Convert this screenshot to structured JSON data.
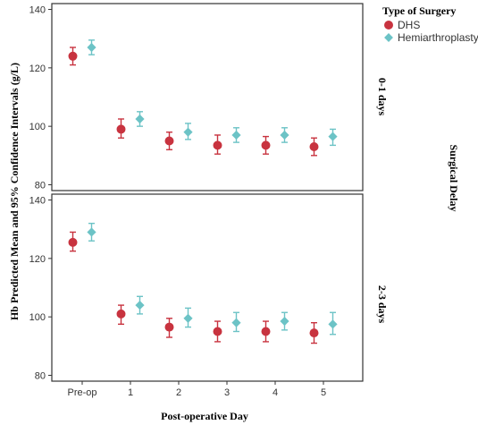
{
  "chart_data": {
    "type": "scatter",
    "title": "",
    "xlabel": "Post-operative Day",
    "ylabel": "Hb Predicted Mean and 95% Confidence Intervals (g/L)",
    "categories": [
      "Pre-op",
      "1",
      "2",
      "3",
      "4",
      "5"
    ],
    "ylim": [
      78,
      142
    ],
    "yticks": [
      80,
      100,
      120,
      140
    ],
    "grid": false,
    "legend": {
      "title": "Type of Surgery",
      "placement": "top-right",
      "entries": [
        "DHS",
        "Hemiarthroplasty"
      ]
    },
    "facet_label": "Surgical Delay",
    "colors": {
      "DHS": "#c8333f",
      "Hemiarthroplasty": "#6cc3c6"
    },
    "panels": [
      {
        "label": "0-1 days",
        "series": [
          {
            "name": "DHS",
            "mean": [
              124,
              99,
              95,
              93.5,
              93.5,
              93
            ],
            "lower": [
              121,
              96,
              92,
              90.5,
              90.5,
              90
            ],
            "upper": [
              127,
              102.5,
              98,
              97,
              96.5,
              96
            ]
          },
          {
            "name": "Hemiarthroplasty",
            "mean": [
              127,
              102.5,
              98,
              97,
              97,
              96.5
            ],
            "lower": [
              124.5,
              100,
              95.5,
              94.5,
              94.5,
              93.5
            ],
            "upper": [
              129.5,
              105,
              101,
              99.5,
              99.5,
              99
            ]
          }
        ]
      },
      {
        "label": "2-3 days",
        "series": [
          {
            "name": "DHS",
            "mean": [
              125.5,
              101,
              96.5,
              95,
              95,
              94.5
            ],
            "lower": [
              122.5,
              97.5,
              93,
              91.5,
              91.5,
              91
            ],
            "upper": [
              129,
              104,
              99.5,
              98.5,
              98.5,
              98
            ]
          },
          {
            "name": "Hemiarthroplasty",
            "mean": [
              129,
              104,
              99.5,
              98,
              98.5,
              97.5
            ],
            "lower": [
              126,
              101,
              96.5,
              95,
              95.5,
              94
            ],
            "upper": [
              132,
              107,
              103,
              101.5,
              101.5,
              101.5
            ]
          }
        ]
      }
    ]
  }
}
